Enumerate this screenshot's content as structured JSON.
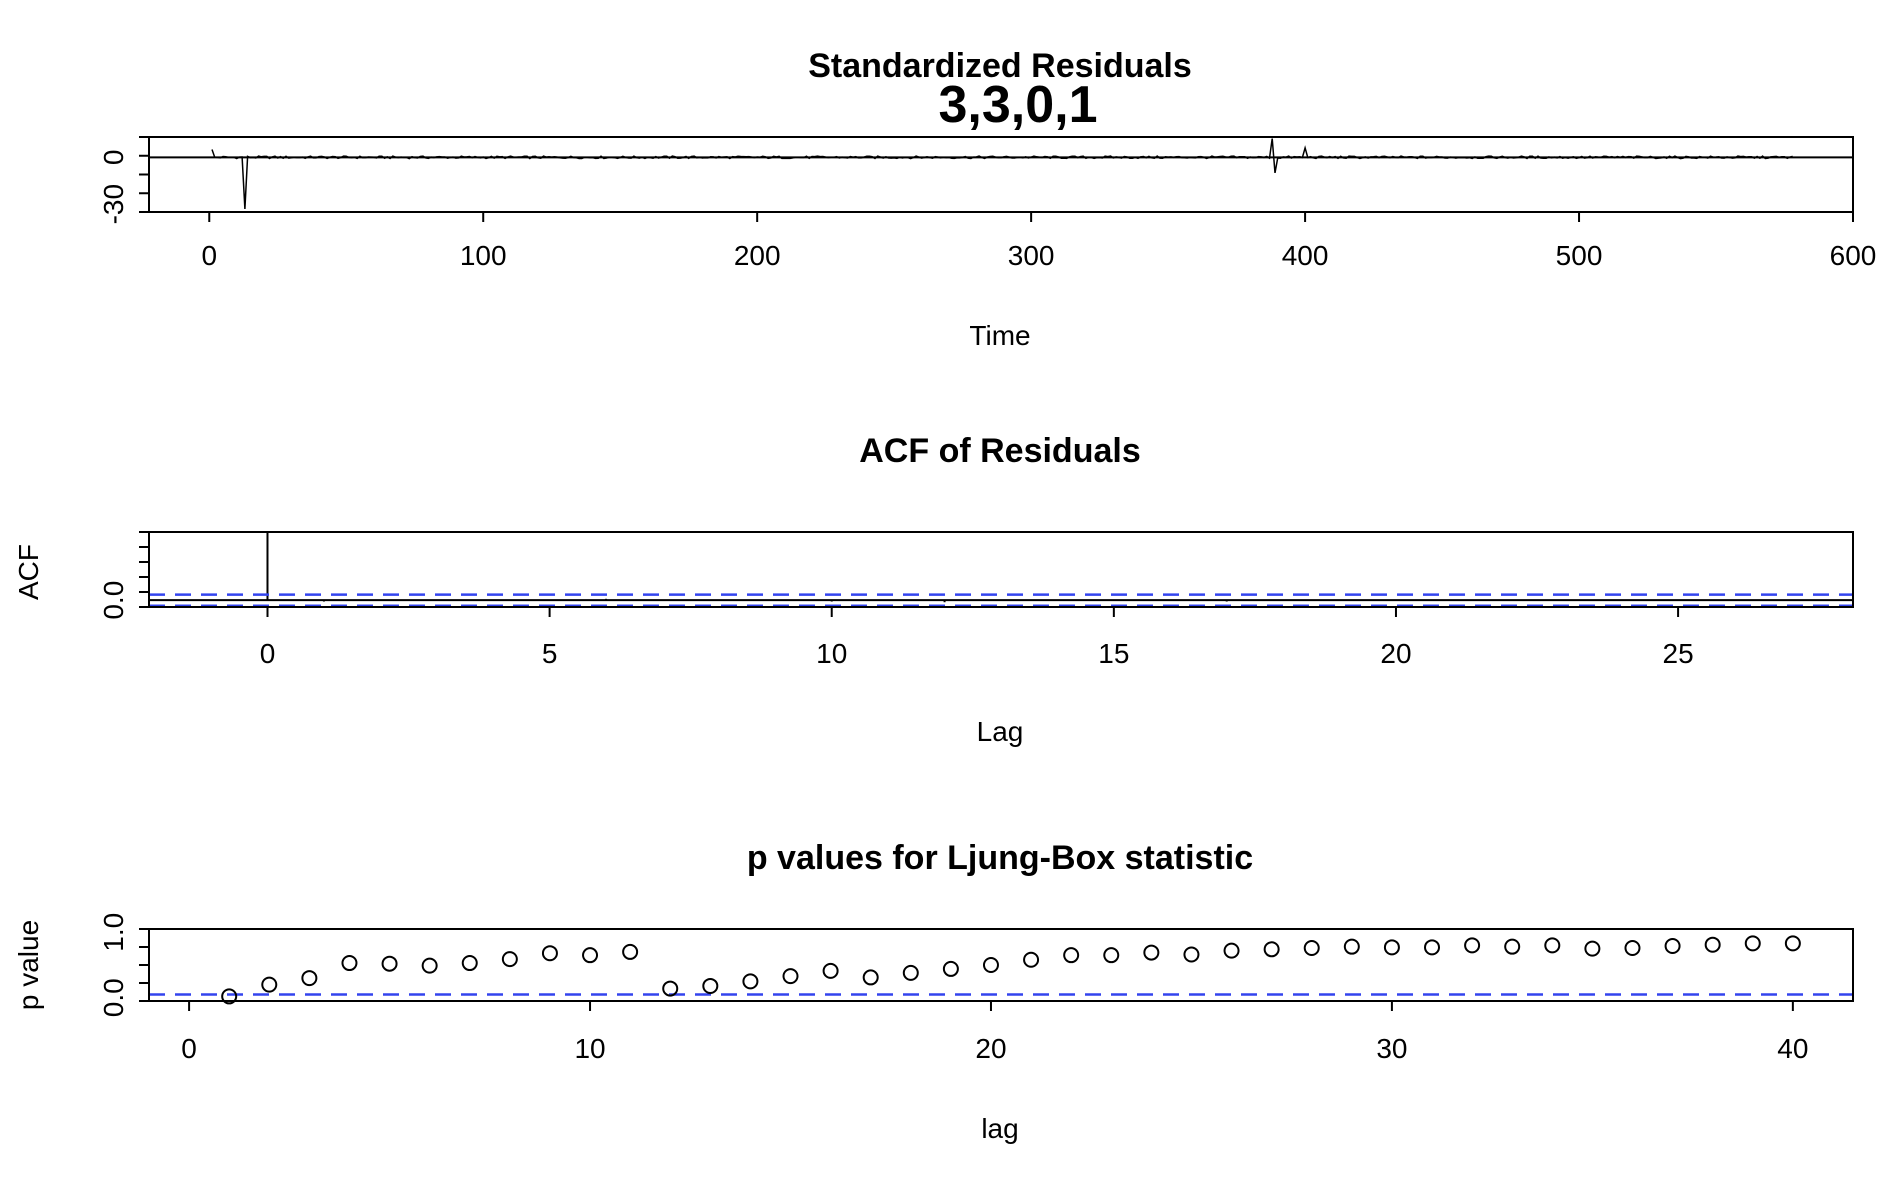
{
  "chart_data": [
    {
      "type": "line",
      "title": "Standardized Residuals",
      "subtitle": "3,3,0,1",
      "xlabel": "Time",
      "ylabel": "",
      "xlim": [
        -22,
        600
      ],
      "ylim": [
        -35,
        13
      ],
      "x_ticks": [
        0,
        100,
        200,
        300,
        400,
        500,
        600
      ],
      "y_ticks": [
        0,
        -30
      ],
      "y_tick_labels": [
        "0",
        "-30"
      ],
      "n": 578,
      "reference_line": 0,
      "notable_points": [
        {
          "x": 1,
          "y": 5
        },
        {
          "x": 13,
          "y": -33
        },
        {
          "x": 388,
          "y": 12
        },
        {
          "x": 389,
          "y": -10
        },
        {
          "x": 400,
          "y": 6
        }
      ]
    },
    {
      "type": "bar",
      "title": "ACF of Residuals",
      "xlabel": "Lag",
      "ylabel": "ACF",
      "xlim": [
        -2.1,
        28.1
      ],
      "ylim": [
        -0.1,
        1.0
      ],
      "x_ticks": [
        0,
        5,
        10,
        15,
        20,
        25
      ],
      "y_ticks": [
        0.0
      ],
      "y_tick_labels": [
        "0.0"
      ],
      "x": [
        0,
        1,
        2,
        3,
        4,
        5,
        6,
        7,
        8,
        9,
        10,
        11,
        12,
        13,
        14,
        15,
        16,
        17,
        18,
        19,
        20,
        21,
        22,
        23,
        24,
        25,
        26,
        27
      ],
      "values": [
        1.0,
        -0.02,
        0.01,
        -0.01,
        0.01,
        -0.01,
        0.02,
        -0.01,
        0.01,
        0.01,
        -0.02,
        0.01,
        -0.03,
        0.01,
        -0.01,
        0.01,
        0.01,
        -0.02,
        0.01,
        -0.01,
        0.01,
        0.01,
        -0.01,
        0.01,
        -0.01,
        0.01,
        -0.01,
        0.01
      ],
      "confidence_band": [
        -0.082,
        0.082
      ],
      "band_color": "#3344ee"
    },
    {
      "type": "scatter",
      "title": "p values for Ljung-Box statistic",
      "xlabel": "lag",
      "ylabel": "p value",
      "xlim": [
        -1,
        41.5
      ],
      "ylim": [
        -0.05,
        1.05
      ],
      "x_ticks": [
        0,
        10,
        20,
        30,
        40
      ],
      "y_ticks": [
        0.0,
        1.0
      ],
      "y_tick_labels": [
        "0.0",
        "1.0"
      ],
      "x": [
        1,
        2,
        3,
        4,
        5,
        6,
        7,
        8,
        9,
        10,
        11,
        12,
        13,
        14,
        15,
        16,
        17,
        18,
        19,
        20,
        21,
        22,
        23,
        24,
        25,
        26,
        27,
        28,
        29,
        30,
        31,
        32,
        33,
        34,
        35,
        36,
        37,
        38,
        39,
        40
      ],
      "values": [
        0.02,
        0.2,
        0.3,
        0.53,
        0.52,
        0.49,
        0.53,
        0.59,
        0.68,
        0.65,
        0.7,
        0.14,
        0.18,
        0.25,
        0.33,
        0.41,
        0.31,
        0.38,
        0.44,
        0.5,
        0.58,
        0.65,
        0.65,
        0.69,
        0.66,
        0.72,
        0.74,
        0.76,
        0.78,
        0.77,
        0.77,
        0.8,
        0.78,
        0.8,
        0.75,
        0.76,
        0.79,
        0.81,
        0.83,
        0.83
      ],
      "reference_line": 0.05,
      "reference_color": "#3344ee"
    }
  ]
}
